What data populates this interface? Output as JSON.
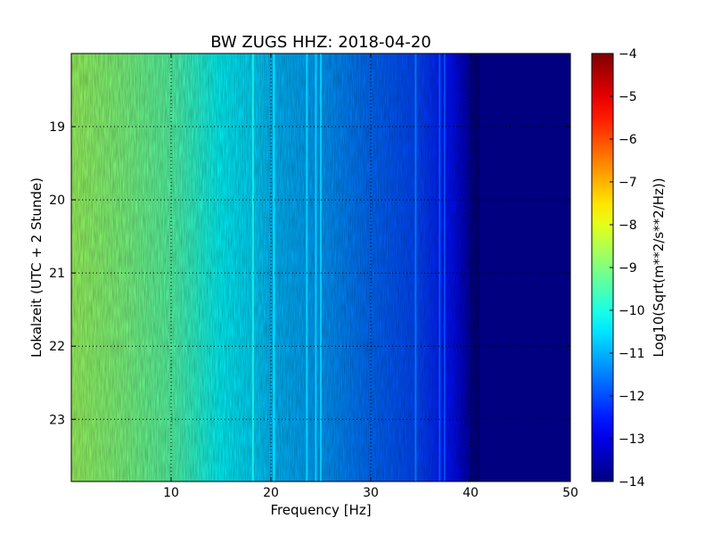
{
  "chart_data": {
    "type": "heatmap",
    "title": "BW ZUGS HHZ: 2018-04-20",
    "xlabel": "Frequency [Hz]",
    "ylabel": "Lokalzeit (UTC + 2 Stunde)",
    "xlim": [
      0,
      50
    ],
    "ylim": [
      18.0,
      23.85
    ],
    "x_ticks": [
      10,
      20,
      30,
      40,
      50
    ],
    "y_ticks": [
      19,
      20,
      21,
      22,
      23
    ],
    "y_inverted": true,
    "grid": true,
    "colormap": "jet",
    "colorbar": {
      "label": "Log10(Sqrt(m**2/s**2/Hz))",
      "range": [
        -14,
        -4
      ],
      "ticks": [
        -4,
        -5,
        -6,
        -7,
        -8,
        -9,
        -10,
        -11,
        -12,
        -13,
        -14
      ]
    },
    "spectrum_profile": {
      "frequency_hz": [
        0,
        5,
        10,
        15,
        18,
        20,
        25,
        30,
        35,
        38,
        39.5,
        40.5,
        50
      ],
      "log_psd": [
        -8.7,
        -9.0,
        -9.4,
        -10.3,
        -10.6,
        -10.9,
        -11.2,
        -11.7,
        -12.1,
        -12.6,
        -13.4,
        -14,
        -14
      ]
    },
    "spectral_lines_hz": [
      18.2,
      20.3,
      23.6,
      24.5,
      25.0,
      34.5,
      36.9,
      37.4
    ]
  }
}
